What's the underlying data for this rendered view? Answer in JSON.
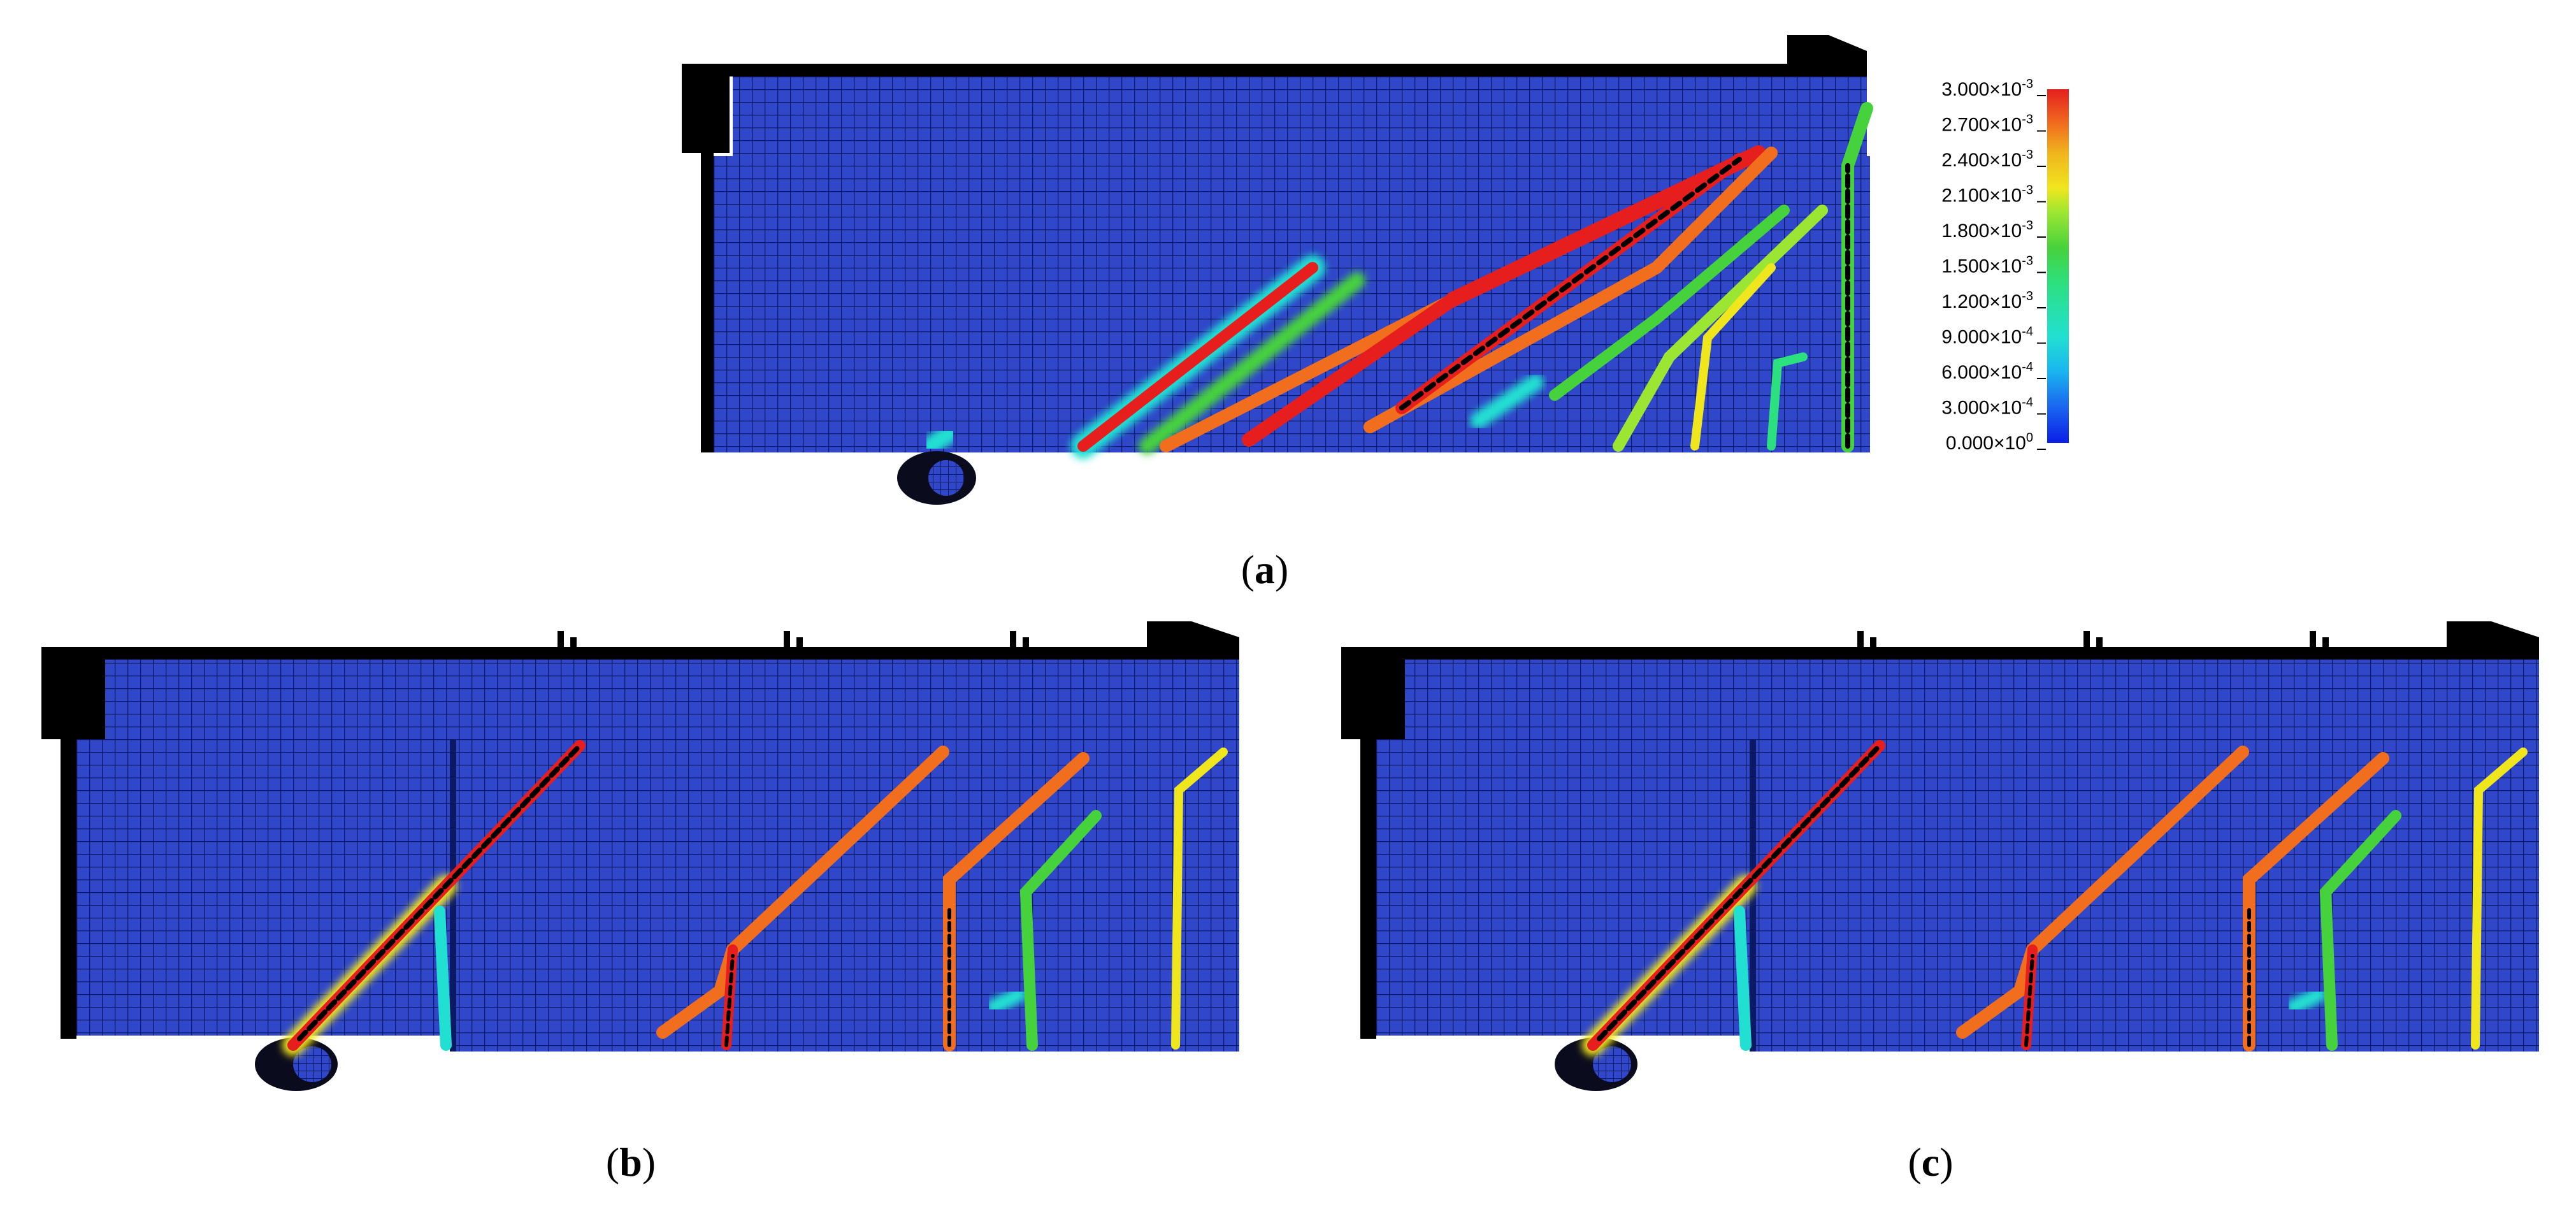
{
  "colors": {
    "background_mesh": "#2f47c8",
    "mesh_line": "#0c1a66",
    "support_black": "#000000",
    "crack_scale": [
      "#0a1ee6",
      "#1a64f0",
      "#19b4f0",
      "#21e0d2",
      "#2ce080",
      "#46d23c",
      "#9be632",
      "#f0e61e",
      "#f0b41e",
      "#f06e1e",
      "#e61e1e"
    ]
  },
  "legend": {
    "title": "",
    "ticks": [
      {
        "mantissa": "3.000×10",
        "exp": "-3"
      },
      {
        "mantissa": "2.700×10",
        "exp": "-3"
      },
      {
        "mantissa": "2.400×10",
        "exp": "-3"
      },
      {
        "mantissa": "2.100×10",
        "exp": "-3"
      },
      {
        "mantissa": "1.800×10",
        "exp": "-3"
      },
      {
        "mantissa": "1.500×10",
        "exp": "-3"
      },
      {
        "mantissa": "1.200×10",
        "exp": "-3"
      },
      {
        "mantissa": "9.000×10",
        "exp": "-4"
      },
      {
        "mantissa": "6.000×10",
        "exp": "-4"
      },
      {
        "mantissa": "3.000×10",
        "exp": "-4"
      },
      {
        "mantissa": "0.000×10",
        "exp": "0"
      }
    ]
  },
  "panels": {
    "a": {
      "label": "a"
    },
    "b": {
      "label": "b"
    },
    "c": {
      "label": "c"
    }
  }
}
